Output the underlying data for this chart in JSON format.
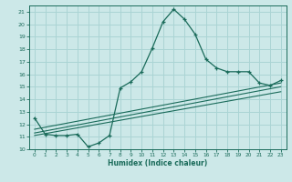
{
  "xlabel": "Humidex (Indice chaleur)",
  "xlim": [
    -0.5,
    23.5
  ],
  "ylim": [
    10,
    21.5
  ],
  "xticks": [
    0,
    1,
    2,
    3,
    4,
    5,
    6,
    7,
    8,
    9,
    10,
    11,
    12,
    13,
    14,
    15,
    16,
    17,
    18,
    19,
    20,
    21,
    22,
    23
  ],
  "yticks": [
    10,
    11,
    12,
    13,
    14,
    15,
    16,
    17,
    18,
    19,
    20,
    21
  ],
  "bg_color": "#cce8e8",
  "line_color": "#1a6b5a",
  "grid_color": "#aad4d4",
  "curve_x": [
    0,
    1,
    2,
    3,
    4,
    5,
    6,
    7,
    8,
    9,
    10,
    11,
    12,
    13,
    14,
    15,
    16,
    17,
    18,
    19,
    20,
    21,
    22,
    23
  ],
  "curve_y": [
    12.5,
    11.2,
    11.1,
    11.1,
    11.2,
    10.2,
    10.5,
    11.1,
    14.9,
    15.4,
    16.2,
    18.1,
    20.2,
    21.2,
    20.4,
    19.2,
    17.2,
    16.5,
    16.2,
    16.2,
    16.2,
    15.3,
    15.1,
    15.5
  ],
  "line1_x": [
    0,
    23
  ],
  "line1_y": [
    11.6,
    15.3
  ],
  "line2_x": [
    0,
    23
  ],
  "line2_y": [
    11.3,
    15.0
  ],
  "line3_x": [
    0,
    23
  ],
  "line3_y": [
    11.1,
    14.6
  ]
}
